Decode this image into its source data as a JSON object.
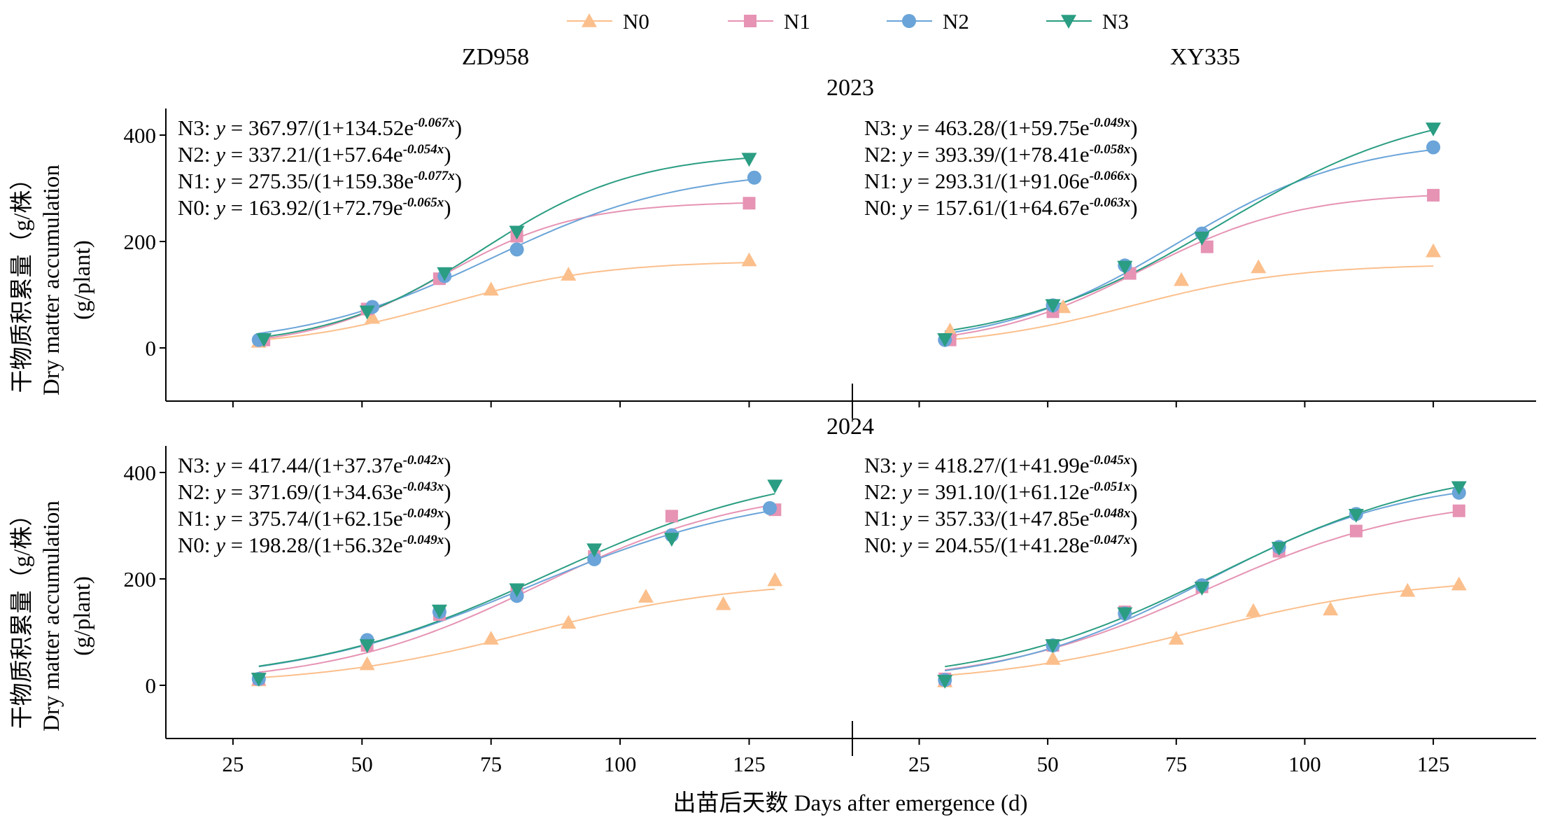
{
  "legend": [
    {
      "label": "N0",
      "marker": "triangle-up",
      "color": "#fbbf8c"
    },
    {
      "label": "N1",
      "marker": "square",
      "color": "#e693b4"
    },
    {
      "label": "N2",
      "marker": "circle",
      "color": "#6aa4d8"
    },
    {
      "label": "N3",
      "marker": "triangle-down",
      "color": "#2a9d82"
    }
  ],
  "column_titles": [
    "ZD958",
    "XY335"
  ],
  "row_titles": [
    "2023",
    "2024"
  ],
  "y_axis_label_zh": "干物质积累量（g/株）",
  "y_axis_label_en": "Dry matter accumulation",
  "y_axis_label_unit": "(g/plant)",
  "x_axis_label": "出苗后天数 Days after emergence (d)",
  "chart_data": [
    {
      "type": "scatter",
      "panel": "ZD958 2023",
      "xlim": [
        12,
        145
      ],
      "ylim": [
        -100,
        450
      ],
      "xticks": [
        25,
        50,
        75,
        100,
        125
      ],
      "yticks": [
        0,
        200,
        400
      ],
      "series": [
        {
          "name": "N0",
          "x": [
            30,
            52,
            75,
            90,
            125
          ],
          "y": [
            12,
            57,
            110,
            138,
            165
          ],
          "fit": {
            "K": 163.92,
            "a": 72.79,
            "r": 0.065
          }
        },
        {
          "name": "N1",
          "x": [
            31,
            51,
            65,
            80,
            125
          ],
          "y": [
            15,
            73,
            130,
            210,
            272
          ],
          "fit": {
            "K": 275.35,
            "a": 159.38,
            "r": 0.077
          }
        },
        {
          "name": "N2",
          "x": [
            30,
            52,
            66,
            80,
            126
          ],
          "y": [
            15,
            77,
            135,
            185,
            320
          ],
          "fit": {
            "K": 337.21,
            "a": 57.64,
            "r": 0.054
          }
        },
        {
          "name": "N3",
          "x": [
            31,
            51,
            66,
            80,
            125
          ],
          "y": [
            16,
            68,
            140,
            218,
            355
          ],
          "fit": {
            "K": 367.97,
            "a": 134.52,
            "r": 0.067
          }
        }
      ],
      "equations": [
        {
          "series": "N3",
          "prefix": "N3: ",
          "y": "y",
          "eq": " = 367.97/(1+134.52e",
          "exp": "-0.067x",
          "close": ")"
        },
        {
          "series": "N2",
          "prefix": "N2: ",
          "y": "y",
          "eq": " = 337.21/(1+57.64e",
          "exp": "-0.054x",
          "close": ")"
        },
        {
          "series": "N1",
          "prefix": "N1: ",
          "y": "y",
          "eq": " = 275.35/(1+159.38e",
          "exp": "-0.077x",
          "close": ")"
        },
        {
          "series": "N0",
          "prefix": "N0: ",
          "y": "y",
          "eq": " = 163.92/(1+72.79e",
          "exp": "-0.065x",
          "close": ")"
        }
      ]
    },
    {
      "type": "scatter",
      "panel": "XY335 2023",
      "xlim": [
        12,
        145
      ],
      "ylim": [
        -100,
        450
      ],
      "xticks": [
        25,
        50,
        75,
        100,
        125
      ],
      "yticks": [
        0,
        200,
        400
      ],
      "series": [
        {
          "name": "N0",
          "x": [
            31,
            53,
            76,
            91,
            125
          ],
          "y": [
            33,
            77,
            128,
            152,
            182
          ],
          "fit": {
            "K": 157.61,
            "a": 64.67,
            "r": 0.063
          }
        },
        {
          "name": "N1",
          "x": [
            31,
            51,
            66,
            81,
            125
          ],
          "y": [
            15,
            68,
            140,
            190,
            287
          ],
          "fit": {
            "K": 293.31,
            "a": 91.06,
            "r": 0.066
          }
        },
        {
          "name": "N2",
          "x": [
            30,
            51,
            65,
            80,
            125
          ],
          "y": [
            15,
            80,
            155,
            215,
            377
          ],
          "fit": {
            "K": 393.39,
            "a": 78.41,
            "r": 0.058
          }
        },
        {
          "name": "N3",
          "x": [
            30,
            51,
            65,
            80,
            125
          ],
          "y": [
            16,
            80,
            152,
            207,
            412
          ],
          "fit": {
            "K": 463.28,
            "a": 59.75,
            "r": 0.049
          }
        }
      ],
      "equations": [
        {
          "series": "N3",
          "prefix": "N3: ",
          "y": "y",
          "eq": " = 463.28/(1+59.75e",
          "exp": "-0.049x",
          "close": ")"
        },
        {
          "series": "N2",
          "prefix": "N2: ",
          "y": "y",
          "eq": " = 393.39/(1+78.41e",
          "exp": "-0.058x",
          "close": ")"
        },
        {
          "series": "N1",
          "prefix": "N1: ",
          "y": "y",
          "eq": " = 293.31/(1+91.06e",
          "exp": "-0.066x",
          "close": ")"
        },
        {
          "series": "N0",
          "prefix": "N0: ",
          "y": "y",
          "eq": " = 157.61/(1+64.67e",
          "exp": "-0.063x",
          "close": ")"
        }
      ]
    },
    {
      "type": "scatter",
      "panel": "ZD958 2024",
      "xlim": [
        12,
        145
      ],
      "ylim": [
        -100,
        450
      ],
      "xticks": [
        25,
        50,
        75,
        100,
        125
      ],
      "yticks": [
        0,
        200,
        400
      ],
      "series": [
        {
          "name": "N0",
          "x": [
            30,
            51,
            75,
            90,
            105,
            120,
            130
          ],
          "y": [
            10,
            40,
            88,
            118,
            167,
            153,
            198
          ],
          "fit": {
            "K": 198.28,
            "a": 56.32,
            "r": 0.049
          }
        },
        {
          "name": "N1",
          "x": [
            30,
            51,
            65,
            80,
            95,
            110,
            130
          ],
          "y": [
            12,
            75,
            133,
            175,
            242,
            318,
            330
          ],
          "fit": {
            "K": 375.74,
            "a": 62.15,
            "r": 0.049
          }
        },
        {
          "name": "N2",
          "x": [
            30,
            51,
            65,
            80,
            95,
            110,
            129
          ],
          "y": [
            12,
            85,
            138,
            168,
            237,
            282,
            333
          ],
          "fit": {
            "K": 371.69,
            "a": 34.63,
            "r": 0.043
          }
        },
        {
          "name": "N3",
          "x": [
            30,
            51,
            65,
            80,
            95,
            110,
            130
          ],
          "y": [
            12,
            75,
            140,
            180,
            255,
            275,
            375
          ],
          "fit": {
            "K": 417.44,
            "a": 37.37,
            "r": 0.042
          }
        }
      ],
      "equations": [
        {
          "series": "N3",
          "prefix": "N3: ",
          "y": "y",
          "eq": " = 417.44/(1+37.37e",
          "exp": "-0.042x",
          "close": ")"
        },
        {
          "series": "N2",
          "prefix": "N2: ",
          "y": "y",
          "eq": " = 371.69/(1+34.63e",
          "exp": "-0.043x",
          "close": ")"
        },
        {
          "series": "N1",
          "prefix": "N1: ",
          "y": "y",
          "eq": " = 375.74/(1+62.15e",
          "exp": "-0.049x",
          "close": ")"
        },
        {
          "series": "N0",
          "prefix": "N0: ",
          "y": "y",
          "eq": " = 198.28/(1+56.32e",
          "exp": "-0.049x",
          "close": ")"
        }
      ]
    },
    {
      "type": "scatter",
      "panel": "XY335 2024",
      "xlim": [
        12,
        145
      ],
      "ylim": [
        -100,
        450
      ],
      "xticks": [
        25,
        50,
        75,
        100,
        125
      ],
      "yticks": [
        0,
        200,
        400
      ],
      "series": [
        {
          "name": "N0",
          "x": [
            30,
            51,
            75,
            90,
            105,
            120,
            130
          ],
          "y": [
            8,
            50,
            88,
            140,
            143,
            178,
            190
          ],
          "fit": {
            "K": 204.55,
            "a": 41.28,
            "r": 0.047
          }
        },
        {
          "name": "N1",
          "x": [
            30,
            51,
            65,
            80,
            95,
            110,
            130
          ],
          "y": [
            12,
            75,
            138,
            185,
            252,
            290,
            328
          ],
          "fit": {
            "K": 357.33,
            "a": 47.85,
            "r": 0.048
          }
        },
        {
          "name": "N2",
          "x": [
            30,
            51,
            65,
            80,
            95,
            110,
            130
          ],
          "y": [
            10,
            75,
            135,
            188,
            260,
            322,
            362
          ],
          "fit": {
            "K": 391.1,
            "a": 61.12,
            "r": 0.051
          }
        },
        {
          "name": "N3",
          "x": [
            30,
            51,
            65,
            80,
            95,
            110,
            130
          ],
          "y": [
            8,
            75,
            135,
            183,
            258,
            320,
            372
          ],
          "fit": {
            "K": 418.27,
            "a": 41.99,
            "r": 0.045
          }
        }
      ],
      "equations": [
        {
          "series": "N3",
          "prefix": "N3: ",
          "y": "y",
          "eq": " = 418.27/(1+41.99e",
          "exp": "-0.045x",
          "close": ")"
        },
        {
          "series": "N2",
          "prefix": "N2: ",
          "y": "y",
          "eq": " = 391.10/(1+61.12e",
          "exp": "-0.051x",
          "close": ")"
        },
        {
          "series": "N1",
          "prefix": "N1: ",
          "y": "y",
          "eq": " = 357.33/(1+47.85e",
          "exp": "-0.048x",
          "close": ")"
        },
        {
          "series": "N0",
          "prefix": "N0: ",
          "y": "y",
          "eq": " = 204.55/(1+41.28e",
          "exp": "-0.047x",
          "close": ")"
        }
      ]
    }
  ]
}
